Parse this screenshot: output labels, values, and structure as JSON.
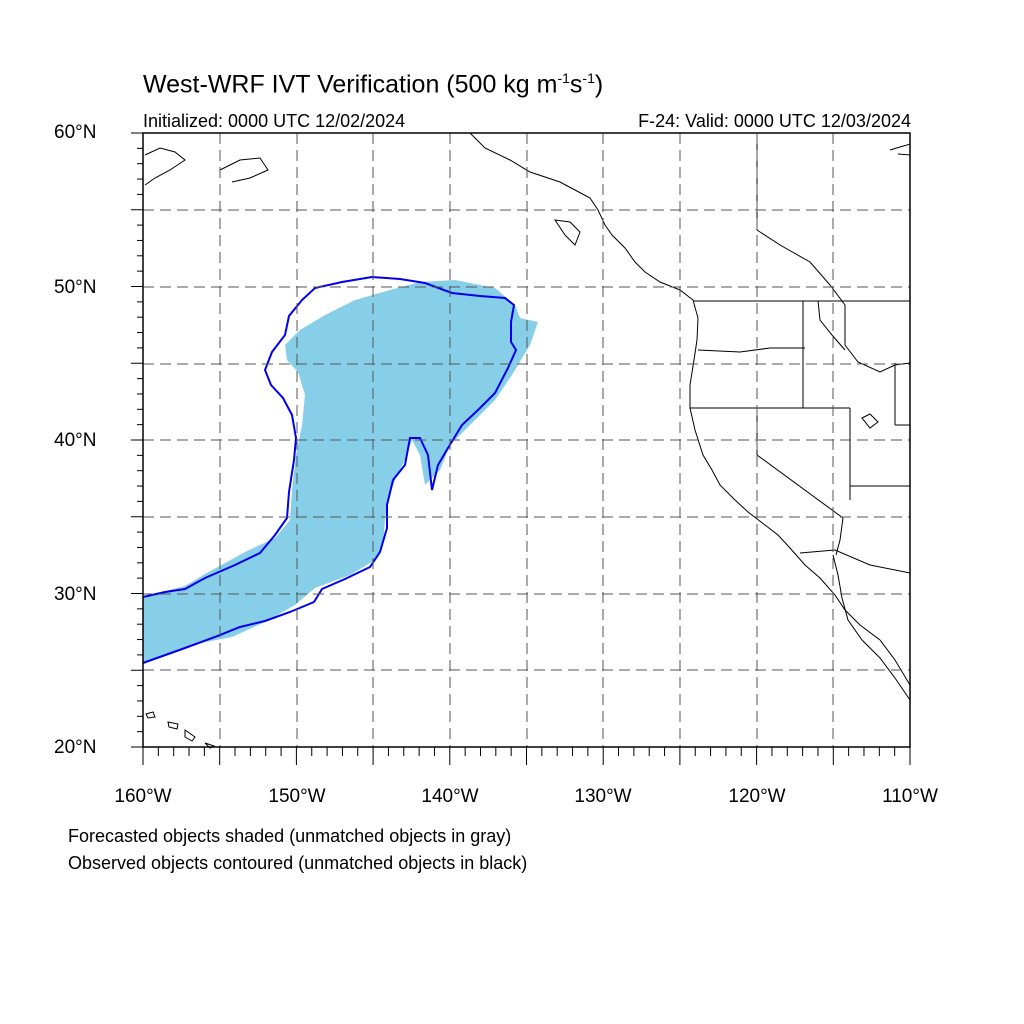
{
  "header": {
    "title_main": "West-WRF IVT Verification (500 kg m",
    "title_exp1": "-1",
    "title_mid": "s",
    "title_exp2": "-1",
    "title_end": ")",
    "initialized": "Initialized: 0000 UTC 12/02/2024",
    "valid": "F-24: Valid: 0000 UTC 12/03/2024"
  },
  "map": {
    "lat_labels": [
      "60°N",
      "50°N",
      "40°N",
      "30°N",
      "20°N"
    ],
    "lon_labels": [
      "160°W",
      "150°W",
      "140°W",
      "130°W",
      "120°W",
      "110°W"
    ],
    "lat_range": [
      20,
      60
    ],
    "lon_range": [
      -160,
      -110
    ],
    "grid": "dashed, every 5 degrees",
    "forecast_color": "#87CEE8",
    "observed_color": "#0000EE"
  },
  "footer": {
    "note1": "Forecasted objects shaded (unmatched objects in gray)",
    "note2": "Observed objects contoured (unmatched objects in black)"
  }
}
